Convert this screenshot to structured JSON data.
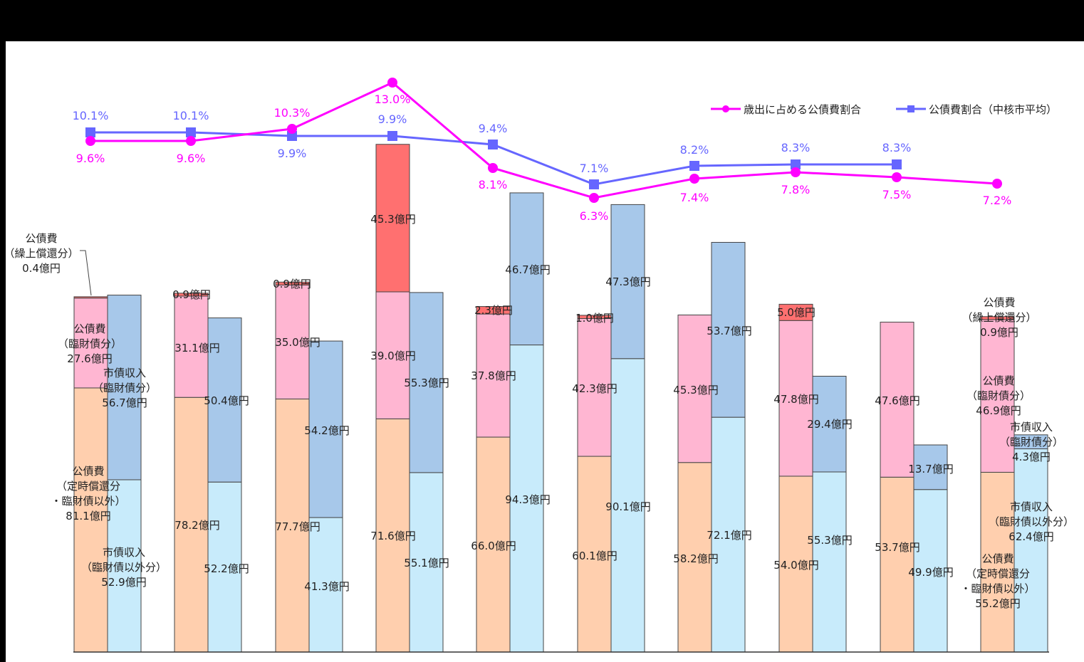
{
  "chart_data": {
    "type": "bar",
    "subtype": "grouped-stacked-bar-with-lines",
    "title": "",
    "xlabel": "",
    "ylabel": "",
    "categories": [
      "",
      "",
      "",
      "",
      "",
      "",
      "",
      "",
      "",
      ""
    ],
    "unit": "億円",
    "stacks": [
      {
        "stack": "公債費",
        "series": [
          {
            "name": "公債費（定時償還分・臨財債以外）",
            "color": "#FFCFAE",
            "values": [
              81.1,
              78.2,
              77.7,
              71.6,
              66.0,
              60.1,
              58.2,
              54.0,
              53.7,
              55.2
            ]
          },
          {
            "name": "公債費（臨財債分）",
            "color": "#FFB6D2",
            "values": [
              27.6,
              31.1,
              35.0,
              39.0,
              37.8,
              42.3,
              45.3,
              47.8,
              47.6,
              46.9
            ]
          },
          {
            "name": "公債費（繰上償還分）",
            "color": "#FF7070",
            "values": [
              0.4,
              0.9,
              0.9,
              45.3,
              2.3,
              1.0,
              0,
              5.0,
              0,
              0.9
            ]
          }
        ]
      },
      {
        "stack": "市債収入",
        "series": [
          {
            "name": "市債収入（臨財債以外分）",
            "color": "#C8EBFB",
            "values": [
              52.9,
              52.2,
              41.3,
              55.1,
              94.3,
              90.1,
              72.1,
              55.3,
              49.9,
              62.4
            ]
          },
          {
            "name": "市債収入（臨財債分）",
            "color": "#A7C8EA",
            "values": [
              56.7,
              50.4,
              54.2,
              55.3,
              46.7,
              47.3,
              53.7,
              29.4,
              13.7,
              4.3
            ]
          }
        ]
      }
    ],
    "lines": [
      {
        "name": "歳出に占める公債費割合",
        "color": "#FF00FF",
        "marker": "circle",
        "values": [
          9.6,
          9.6,
          10.3,
          13.0,
          8.1,
          6.3,
          7.4,
          7.8,
          7.5,
          7.2
        ]
      },
      {
        "name": "公債費割合（中核市平均）",
        "color": "#6666FF",
        "marker": "square",
        "values": [
          10.1,
          10.1,
          9.9,
          9.9,
          9.4,
          7.1,
          8.2,
          8.3,
          8.3,
          null
        ]
      }
    ],
    "legend": {
      "position": "top-right",
      "entries": [
        "歳出に占める公債費割合",
        "公債費割合（中核市平均）"
      ]
    },
    "grid": false,
    "axes_visible": false
  },
  "legend": {
    "item1": "歳出に占める公債費割合",
    "item2": "公債費割合（中核市平均）"
  },
  "callouts": {
    "first_kuriage": [
      "公債費",
      "（繰上償還分）",
      "0.4億円"
    ],
    "first_rinzai": [
      "公債費",
      "（臨財債分）",
      "27.6億円"
    ],
    "first_teiji": [
      "公債費",
      "（定時償還分",
      "・臨財債以外）",
      "81.1億円"
    ],
    "first_income_rinzai": [
      "市債収入",
      "（臨財債分）",
      "56.7億円"
    ],
    "first_income_other": [
      "市債収入",
      "（臨財債以外分）",
      "52.9億円"
    ],
    "last_kuriage": [
      "公債費",
      "（繰上償還分）",
      "0.9億円"
    ],
    "last_rinzai": [
      "公債費",
      "（臨財債分）",
      "46.9億円"
    ],
    "last_income_rinzai": [
      "市債収入",
      "（臨財債分）",
      "4.3億円"
    ],
    "last_income_other": [
      "市債収入",
      "（臨財債以外分）",
      "62.4億円"
    ],
    "last_teiji": [
      "公債費",
      "（定時償還分",
      "・臨財債以外）",
      "55.2億円"
    ]
  }
}
